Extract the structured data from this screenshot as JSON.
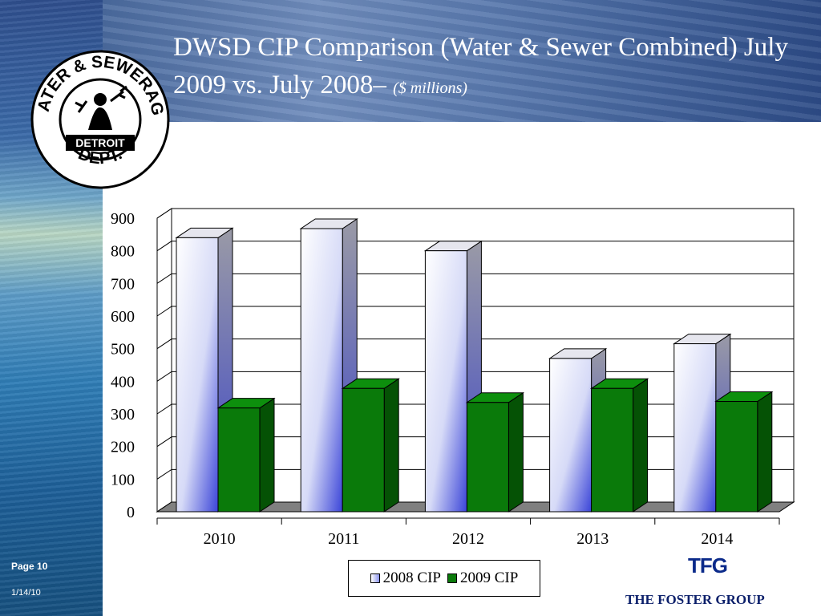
{
  "slide": {
    "title_main": "DWSD CIP Comparison (Water & Sewer Combined) July 2009 vs. July 2008–",
    "title_sub": "($ millions)",
    "page_label": "Page  10",
    "date": "1/14/10",
    "logo": {
      "ring_text_top": "WATER & SEWERAGE",
      "center_text": "DETROIT",
      "ring_text_bottom": "DEPT."
    },
    "brand_mark": "TFG",
    "brand_name": "THE FOSTER GROUP"
  },
  "colors": {
    "series_2008": "#c8cdf5",
    "series_2009": "#0a7a0a",
    "floor": "#808080"
  },
  "chart_data": {
    "type": "bar",
    "categories": [
      "2010",
      "2011",
      "2012",
      "2013",
      "2014"
    ],
    "series": [
      {
        "name": "2008 CIP",
        "values": [
          840,
          868,
          800,
          470,
          515
        ]
      },
      {
        "name": "2009 CIP",
        "values": [
          318,
          378,
          335,
          378,
          338
        ]
      }
    ],
    "ylim": [
      0,
      900
    ],
    "yticks": [
      "0",
      "100",
      "200",
      "300",
      "400",
      "500",
      "600",
      "700",
      "800",
      "900"
    ],
    "grid": true,
    "legend_position": "bottom"
  }
}
